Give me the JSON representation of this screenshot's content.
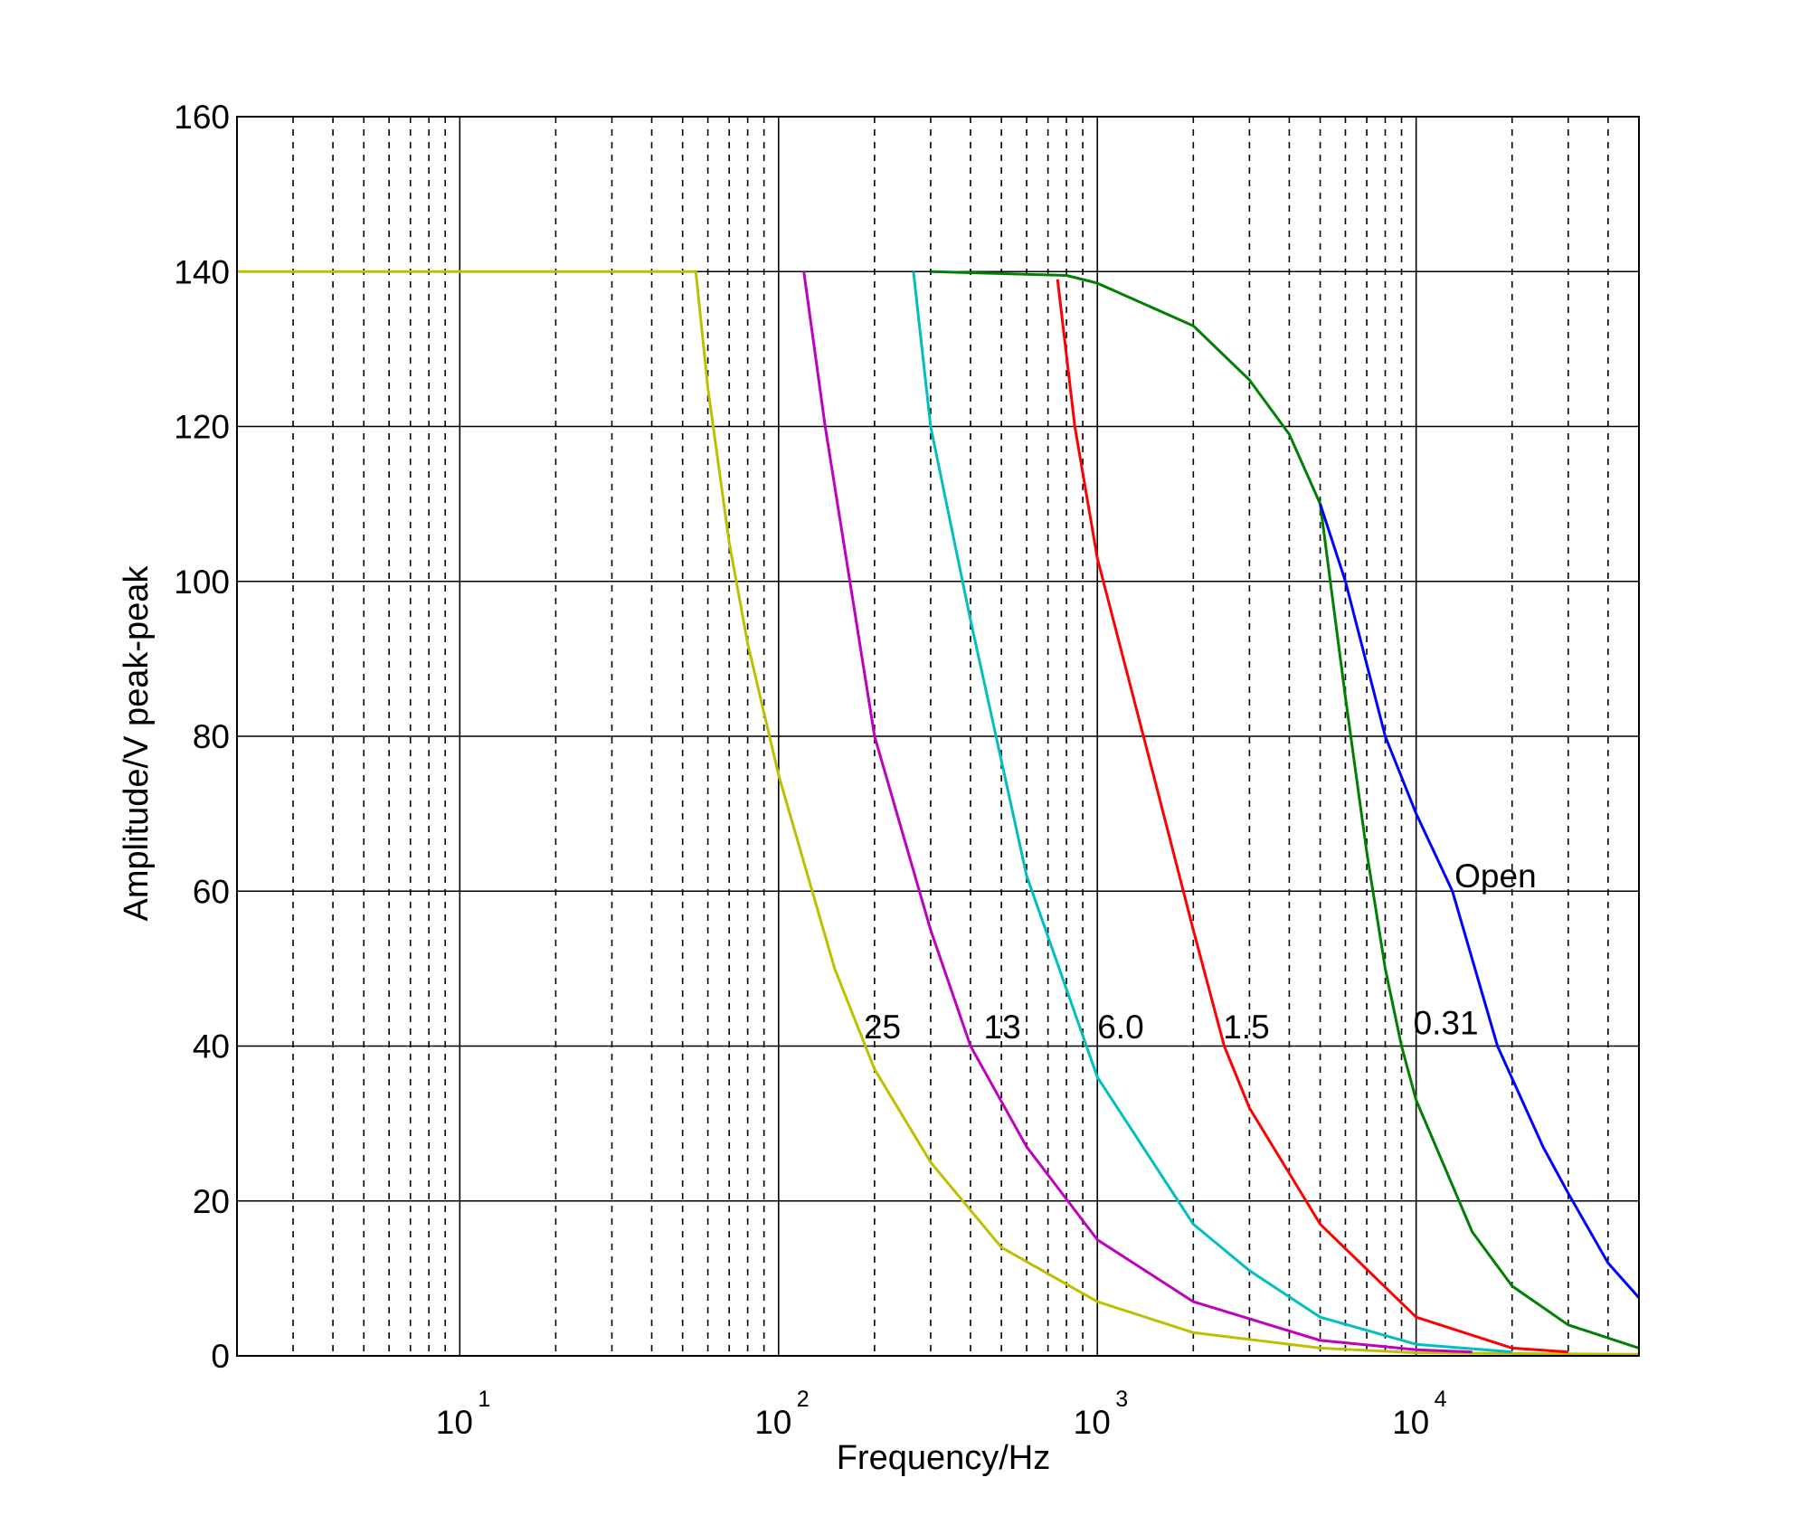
{
  "chart_data": {
    "type": "line",
    "title": "",
    "xlabel": "Frequency/Hz",
    "ylabel": "Amplitude/V peak-peak",
    "xscale": "log",
    "xlim": [
      2,
      50000
    ],
    "ylim": [
      0,
      160
    ],
    "xticks": [
      {
        "value": 10,
        "base": "10",
        "exp": "1"
      },
      {
        "value": 100,
        "base": "10",
        "exp": "2"
      },
      {
        "value": 1000,
        "base": "10",
        "exp": "3"
      },
      {
        "value": 10000,
        "base": "10",
        "exp": "4"
      }
    ],
    "yticks": [
      "0",
      "20",
      "40",
      "60",
      "80",
      "100",
      "120",
      "140",
      "160"
    ],
    "grid": true,
    "series": [
      {
        "name": "25",
        "color": "#bfbf00",
        "points": [
          [
            2,
            140
          ],
          [
            55,
            140
          ],
          [
            60,
            125
          ],
          [
            70,
            105
          ],
          [
            80,
            92
          ],
          [
            100,
            75
          ],
          [
            150,
            50
          ],
          [
            200,
            37
          ],
          [
            300,
            25
          ],
          [
            500,
            14
          ],
          [
            1000,
            7
          ],
          [
            2000,
            3
          ],
          [
            5000,
            1
          ],
          [
            10000,
            0.4
          ],
          [
            50000,
            0.2
          ]
        ]
      },
      {
        "name": "13",
        "color": "#bf00bf",
        "points": [
          [
            120,
            140
          ],
          [
            140,
            120
          ],
          [
            200,
            80
          ],
          [
            300,
            55
          ],
          [
            400,
            40
          ],
          [
            600,
            27
          ],
          [
            1000,
            15
          ],
          [
            2000,
            7
          ],
          [
            5000,
            2
          ],
          [
            10000,
            0.8
          ],
          [
            15000,
            0.5
          ]
        ]
      },
      {
        "name": "6.0",
        "color": "#00bfbf",
        "points": [
          [
            265,
            140
          ],
          [
            300,
            120
          ],
          [
            400,
            95
          ],
          [
            600,
            62
          ],
          [
            1000,
            36
          ],
          [
            2000,
            17
          ],
          [
            3000,
            11
          ],
          [
            5000,
            5
          ],
          [
            10000,
            1.5
          ],
          [
            20000,
            0.5
          ]
        ]
      },
      {
        "name": "1.5",
        "color": "#ff0000",
        "points": [
          [
            750,
            139
          ],
          [
            850,
            120
          ],
          [
            1000,
            103
          ],
          [
            1500,
            75
          ],
          [
            2000,
            55
          ],
          [
            2500,
            40
          ],
          [
            3000,
            32
          ],
          [
            5000,
            17
          ],
          [
            10000,
            5
          ],
          [
            20000,
            1
          ],
          [
            30000,
            0.5
          ]
        ]
      },
      {
        "name": "0.31",
        "color": "#008000",
        "points": [
          [
            300,
            140
          ],
          [
            800,
            139.5
          ],
          [
            1000,
            138.5
          ],
          [
            2000,
            133
          ],
          [
            3000,
            126
          ],
          [
            4000,
            119
          ],
          [
            5000,
            110
          ],
          [
            6000,
            85
          ],
          [
            7000,
            65
          ],
          [
            8000,
            50
          ],
          [
            9000,
            40
          ],
          [
            10000,
            33
          ],
          [
            15000,
            16
          ],
          [
            20000,
            9
          ],
          [
            30000,
            4
          ],
          [
            50000,
            1
          ]
        ]
      },
      {
        "name": "Open",
        "color": "#0000ff",
        "points": [
          [
            5000,
            110
          ],
          [
            6000,
            100
          ],
          [
            8000,
            80
          ],
          [
            10000,
            70
          ],
          [
            13000,
            60
          ],
          [
            18000,
            40
          ],
          [
            25000,
            27
          ],
          [
            30000,
            21
          ],
          [
            40000,
            12
          ],
          [
            50000,
            7.5
          ]
        ]
      }
    ],
    "annotations": [
      {
        "text": "25",
        "x": 185,
        "y": 41
      },
      {
        "text": "13",
        "x": 440,
        "y": 41
      },
      {
        "text": "6.0",
        "x": 1000,
        "y": 41
      },
      {
        "text": "1.5",
        "x": 2480,
        "y": 41
      },
      {
        "text": "0.31",
        "x": 9800,
        "y": 41.5
      },
      {
        "text": "Open",
        "x": 13200,
        "y": 60.5
      }
    ]
  }
}
